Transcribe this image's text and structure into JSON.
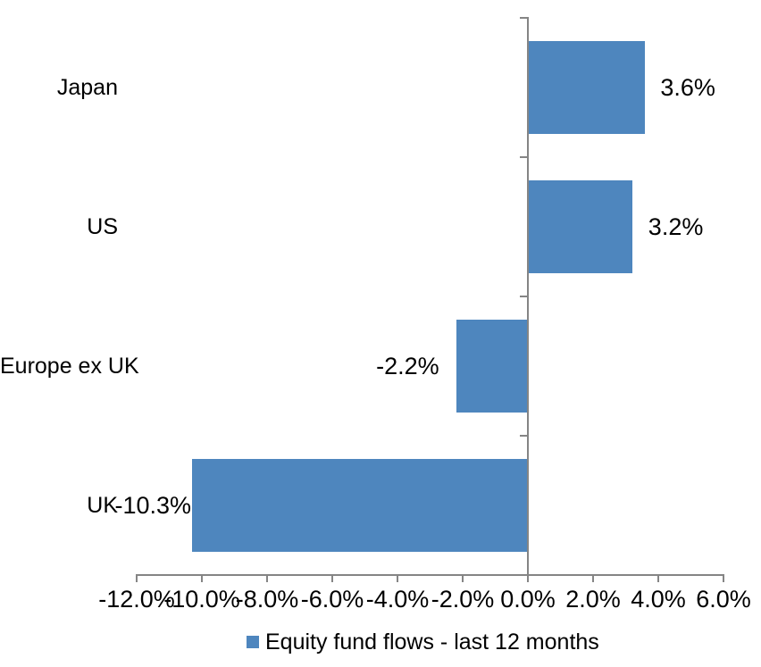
{
  "chart_data": {
    "type": "bar",
    "orientation": "horizontal",
    "categories": [
      "Japan",
      "US",
      "Europe ex UK",
      "UK"
    ],
    "values": [
      3.6,
      3.2,
      -2.2,
      -10.3
    ],
    "data_labels": [
      "3.6%",
      "3.2%",
      "-2.2%",
      "-10.3%"
    ],
    "series": [
      {
        "name": "Equity fund flows - last 12 months",
        "values": [
          3.6,
          3.2,
          -2.2,
          -10.3
        ]
      }
    ],
    "title": "",
    "xlabel": "",
    "ylabel": "",
    "xlim": [
      -12,
      6
    ],
    "x_tick_step": 2,
    "x_tick_labels": [
      "-12.0%",
      "-10.0%",
      "-8.0%",
      "-6.0%",
      "-4.0%",
      "-2.0%",
      "0.0%",
      "2.0%",
      "4.0%",
      "6.0%"
    ],
    "grid": false,
    "legend_position": "bottom",
    "bar_color": "#4E86BE",
    "axis_color": "#858585",
    "text_color": "#000000"
  },
  "legend": {
    "label": "Equity fund flows - last 12 months",
    "swatch_color": "#4E86BE"
  }
}
